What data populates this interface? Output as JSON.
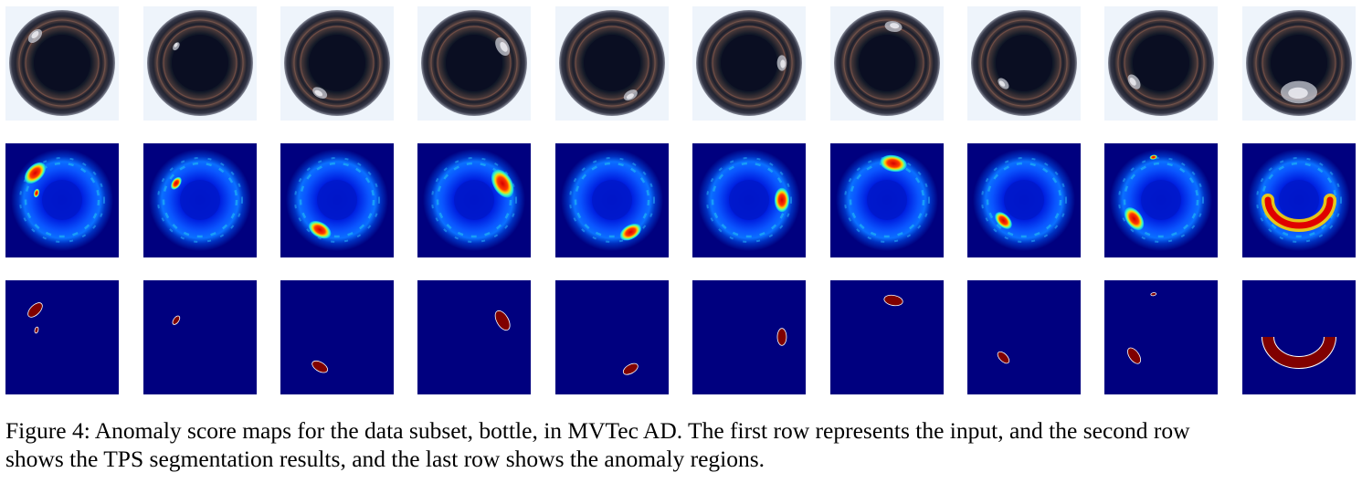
{
  "figure": {
    "rows": [
      {
        "kind": "input",
        "row": 1
      },
      {
        "kind": "score",
        "row": 2
      },
      {
        "kind": "mask",
        "row": 3
      }
    ],
    "samples": [
      {
        "defect": [
          {
            "a": 225,
            "r": 0.72,
            "size": 1.0
          }
        ],
        "extra": [
          {
            "a": 195,
            "r": 0.5,
            "size": 0.35
          }
        ]
      },
      {
        "defect": [
          {
            "a": 215,
            "r": 0.55,
            "size": 0.55
          }
        ],
        "extra": []
      },
      {
        "defect": [
          {
            "a": 120,
            "r": 0.65,
            "size": 0.95
          }
        ],
        "extra": []
      },
      {
        "defect": [
          {
            "a": -30,
            "r": 0.62,
            "size": 1.2
          }
        ],
        "extra": []
      },
      {
        "defect": [
          {
            "a": 60,
            "r": 0.7,
            "size": 0.9
          }
        ],
        "extra": []
      },
      {
        "defect": [
          {
            "a": 0,
            "r": 0.62,
            "size": 0.95
          }
        ],
        "extra": []
      },
      {
        "defect": [
          {
            "a": -80,
            "r": 0.7,
            "size": 1.05
          }
        ],
        "extra": []
      },
      {
        "defect": [
          {
            "a": 135,
            "r": 0.55,
            "size": 0.8
          }
        ],
        "extra": []
      },
      {
        "defect": [
          {
            "a": 145,
            "r": 0.62,
            "size": 1.0
          }
        ],
        "extra": [
          {
            "a": -100,
            "r": 0.82,
            "size": 0.3
          }
        ]
      },
      {
        "defect": [
          {
            "a": 90,
            "r": 0.55,
            "size": 2.2
          }
        ],
        "extra": []
      }
    ],
    "colors": {
      "input_bg": "#eef4fb",
      "score_bg": "#00007f",
      "mask_bg": "#00007f",
      "mask_fg": "#800000"
    }
  },
  "caption": {
    "line1": "Figure 4: Anomaly score maps for the data subset, bottle, in MVTec AD. The first row represents the input, and the second row",
    "line2": "shows the TPS segmentation results, and the last row shows the anomaly regions."
  }
}
